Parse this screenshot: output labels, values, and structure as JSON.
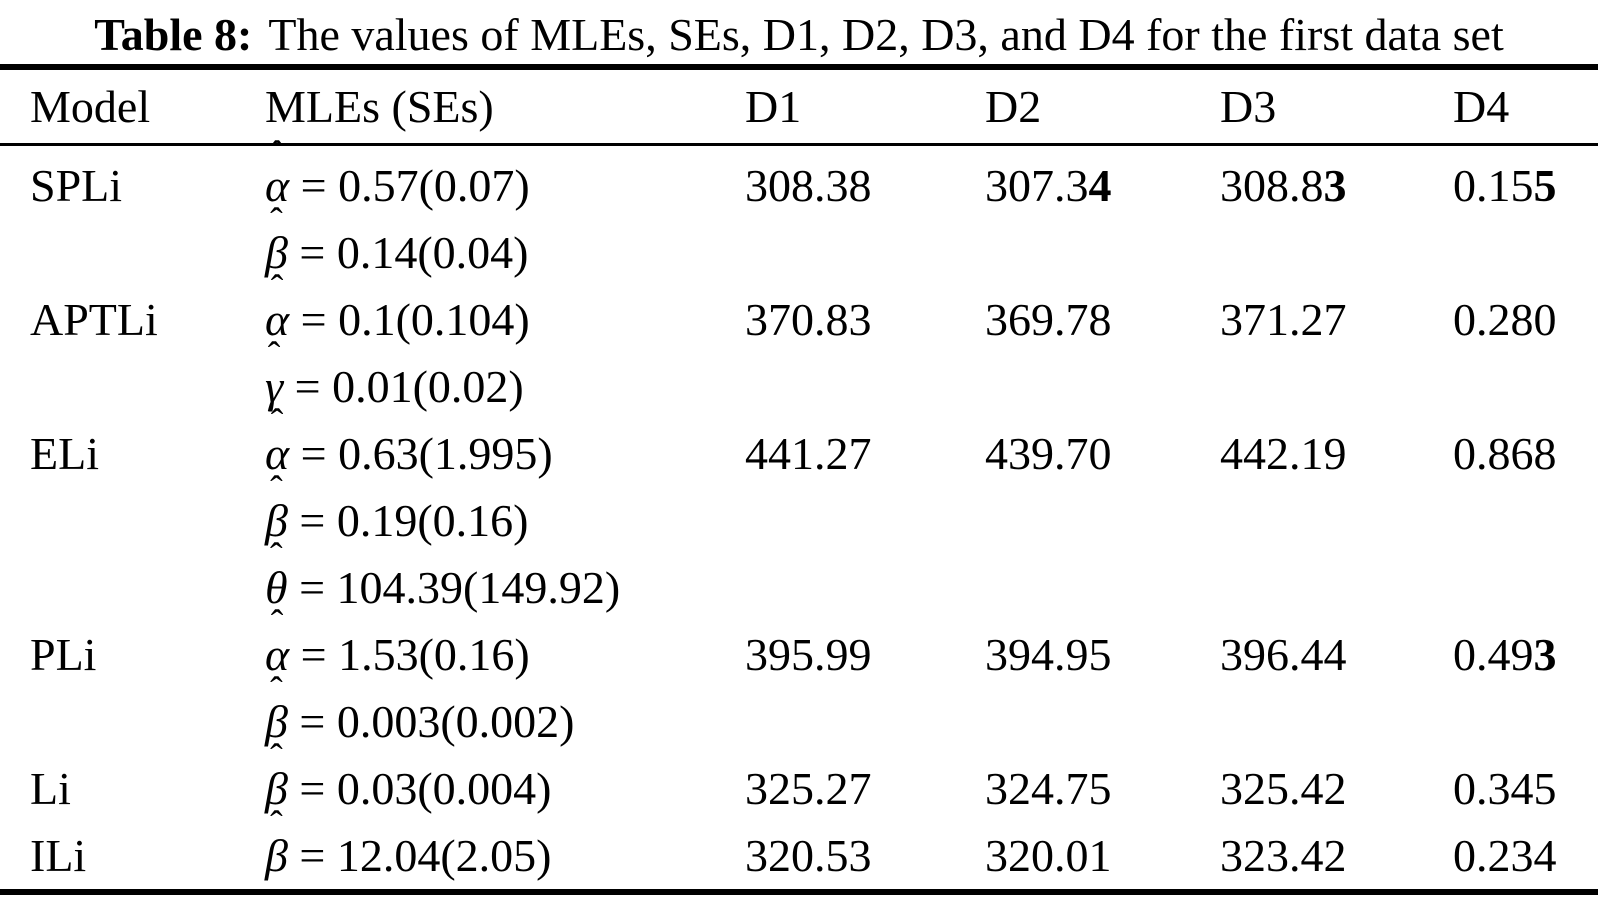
{
  "title": {
    "label": "Table 8:",
    "text": "The values of MLEs, SEs, D1, D2, D3, and D4 for the first data set"
  },
  "table": {
    "hat_char": "ˆ",
    "columns": [
      "Model",
      "MLEs (SEs)",
      "D1",
      "D2",
      "D3",
      "D4"
    ],
    "rows": [
      {
        "model": "SPLi",
        "mles": [
          {
            "sym": "α",
            "rest": " = 0.57(0.07)"
          },
          {
            "sym": "β",
            "rest": " = 0.14(0.04)"
          }
        ],
        "values": [
          {
            "text": "308.38",
            "bold": ""
          },
          {
            "text": "307.3",
            "bold": "4"
          },
          {
            "text": "308.8",
            "bold": "3"
          },
          {
            "text": "0.15",
            "bold": "5"
          }
        ]
      },
      {
        "model": "APTLi",
        "mles": [
          {
            "sym": "α",
            "rest": " = 0.1(0.104)"
          },
          {
            "sym": "γ",
            "rest": " = 0.01(0.02)"
          }
        ],
        "values": [
          {
            "text": "370.83",
            "bold": ""
          },
          {
            "text": "369.78",
            "bold": ""
          },
          {
            "text": "371.27",
            "bold": ""
          },
          {
            "text": "0.280",
            "bold": ""
          }
        ]
      },
      {
        "model": "ELi",
        "mles": [
          {
            "sym": "α",
            "rest": " = 0.63(1.995)"
          },
          {
            "sym": "β",
            "rest": " = 0.19(0.16)"
          },
          {
            "sym": "θ",
            "rest": " = 104.39(149.92)"
          }
        ],
        "values": [
          {
            "text": "441.27",
            "bold": ""
          },
          {
            "text": "439.70",
            "bold": ""
          },
          {
            "text": "442.19",
            "bold": ""
          },
          {
            "text": "0.868",
            "bold": ""
          }
        ]
      },
      {
        "model": "PLi",
        "mles": [
          {
            "sym": "α",
            "rest": " = 1.53(0.16)"
          },
          {
            "sym": "β",
            "rest": " = 0.003(0.002)"
          }
        ],
        "values": [
          {
            "text": "395.99",
            "bold": ""
          },
          {
            "text": "394.95",
            "bold": ""
          },
          {
            "text": "396.44",
            "bold": ""
          },
          {
            "text": "0.49",
            "bold": "3"
          }
        ]
      },
      {
        "model": "Li",
        "mles": [
          {
            "sym": "β",
            "rest": " = 0.03(0.004)"
          }
        ],
        "values": [
          {
            "text": "325.27",
            "bold": ""
          },
          {
            "text": "324.75",
            "bold": ""
          },
          {
            "text": "325.42",
            "bold": ""
          },
          {
            "text": "0.345",
            "bold": ""
          }
        ]
      },
      {
        "model": "ILi",
        "mles": [
          {
            "sym": "β",
            "rest": " = 12.04(2.05)"
          }
        ],
        "values": [
          {
            "text": "320.53",
            "bold": ""
          },
          {
            "text": "320.01",
            "bold": ""
          },
          {
            "text": "323.42",
            "bold": ""
          },
          {
            "text": "0.234",
            "bold": ""
          }
        ]
      }
    ]
  }
}
